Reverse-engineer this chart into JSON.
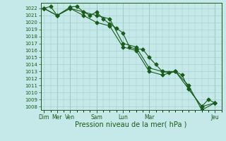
{
  "bg_color": "#c5e8e8",
  "grid_color": "#a0cccc",
  "line_color": "#1a5c1a",
  "marker_color": "#1a5c1a",
  "ylabel_values": [
    1008,
    1009,
    1010,
    1011,
    1012,
    1013,
    1014,
    1015,
    1016,
    1017,
    1018,
    1019,
    1020,
    1021,
    1022
  ],
  "ylim": [
    1007.5,
    1022.8
  ],
  "xlabel": "Pression niveau de la mer( hPa )",
  "xlabel_fontsize": 7,
  "day_positions": [
    0,
    12,
    24,
    48,
    72,
    96,
    156
  ],
  "day_labels": [
    "Dim",
    "Mer",
    "Ven",
    "Sam",
    "Lun",
    "Mar",
    "Jeu"
  ],
  "series1_x": [
    0,
    6,
    12,
    24,
    30,
    36,
    42,
    48,
    54,
    60,
    66,
    72,
    78,
    84,
    90,
    96,
    102,
    108,
    114,
    120,
    126,
    132,
    144,
    150,
    156
  ],
  "series1_y": [
    1022.0,
    1022.3,
    1021.0,
    1022.2,
    1022.3,
    1021.5,
    1021.0,
    1021.5,
    1020.5,
    1019.8,
    1019.2,
    1018.5,
    1016.5,
    1016.2,
    1016.2,
    1015.0,
    1014.0,
    1013.0,
    1012.8,
    1013.0,
    1012.5,
    1010.5,
    1008.0,
    1009.0,
    1008.5
  ],
  "series2_x": [
    0,
    12,
    24,
    36,
    48,
    60,
    72,
    84,
    96,
    108,
    120,
    132,
    144,
    156
  ],
  "series2_y": [
    1022.0,
    1021.0,
    1022.0,
    1021.0,
    1020.0,
    1019.5,
    1016.5,
    1016.0,
    1013.0,
    1012.5,
    1013.0,
    1010.5,
    1008.0,
    1008.5
  ],
  "series3_x": [
    0,
    12,
    24,
    36,
    48,
    60,
    72,
    84,
    96,
    108,
    120,
    132,
    144,
    156
  ],
  "series3_y": [
    1022.0,
    1021.0,
    1022.0,
    1021.5,
    1021.0,
    1020.5,
    1017.0,
    1016.5,
    1013.5,
    1013.0,
    1013.0,
    1011.0,
    1007.5,
    1008.5
  ]
}
